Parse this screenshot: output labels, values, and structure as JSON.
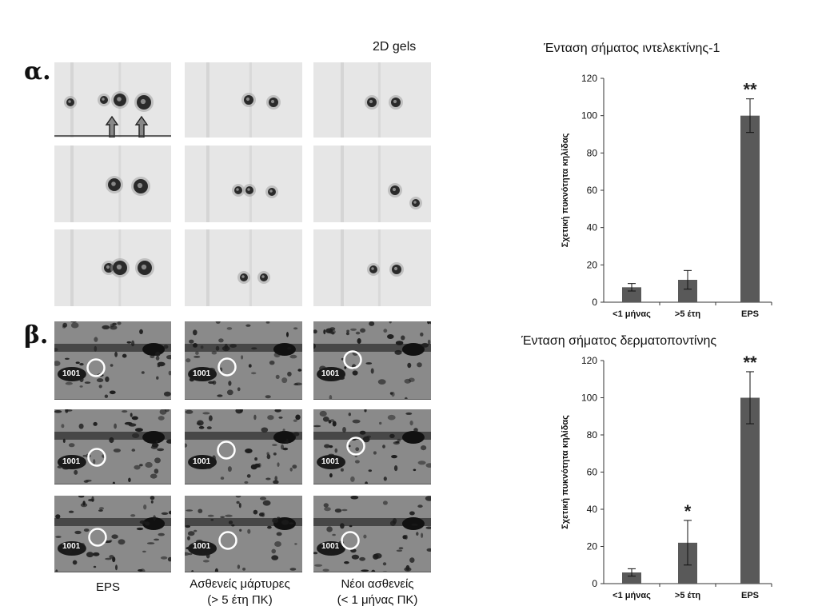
{
  "section_a_label": "α.",
  "section_b_label": "β.",
  "gels_title": "2D gels",
  "spot_label": "1001",
  "col_labels": [
    {
      "line1": "EPS",
      "line2": ""
    },
    {
      "line1": "Ασθενείς μάρτυρες",
      "line2": "(> 5 έτη ΠΚ)"
    },
    {
      "line1": "Νέοι ασθενείς",
      "line2": "(< 1 μήνας ΠΚ)"
    }
  ],
  "colors": {
    "bar": "#595959",
    "gel_light": "#e9e9e9",
    "gel_dark": "#7f7f7f"
  },
  "chart_data": [
    {
      "type": "bar",
      "title": "Ένταση σήματος ιντελεκτίνης-1",
      "ylabel": "Σχετική πυκνότητα κηλίδας",
      "xlabel": "",
      "categories": [
        "<1 μήνας",
        ">5 έτη",
        "EPS"
      ],
      "values": [
        8,
        12,
        100
      ],
      "errors": [
        2,
        5,
        9
      ],
      "significance": [
        "",
        "",
        "**"
      ],
      "ylim": [
        0,
        120
      ],
      "yticks": [
        0,
        20,
        40,
        60,
        80,
        100,
        120
      ],
      "grid": false
    },
    {
      "type": "bar",
      "title": "Ένταση σήματος δερματοποντίνης",
      "ylabel": "Σχετική πυκνότητα κηλίδας",
      "xlabel": "",
      "categories": [
        "<1 μήνας",
        ">5 έτη",
        "EPS"
      ],
      "values": [
        6,
        22,
        100
      ],
      "errors": [
        2,
        12,
        14
      ],
      "significance": [
        "",
        "*",
        "**"
      ],
      "ylim": [
        0,
        120
      ],
      "yticks": [
        0,
        20,
        40,
        60,
        80,
        100,
        120
      ],
      "grid": false
    }
  ]
}
